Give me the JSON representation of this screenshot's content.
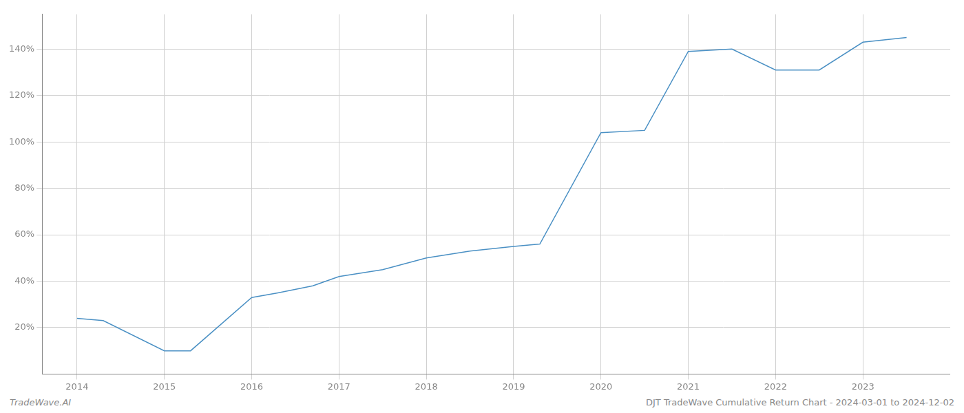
{
  "chart_data": {
    "type": "line",
    "title": "DJT TradeWave Cumulative Return Chart - 2024-03-01 to 2024-12-02",
    "annotations": [
      "TradeWave.AI"
    ],
    "x": [
      2014.0,
      2014.3,
      2015.0,
      2015.3,
      2016.0,
      2016.3,
      2016.7,
      2017.0,
      2017.5,
      2018.0,
      2018.5,
      2019.0,
      2019.3,
      2020.0,
      2020.5,
      2021.0,
      2021.5,
      2022.0,
      2022.5,
      2023.0,
      2023.5
    ],
    "values": [
      24,
      23,
      10,
      10,
      33,
      35,
      38,
      42,
      45,
      50,
      53,
      55,
      56,
      104,
      105,
      139,
      140,
      131,
      131,
      143,
      145
    ],
    "color": "#4a90c4",
    "xlim": [
      2013.6,
      2024.0
    ],
    "ylim": [
      0,
      155
    ],
    "xticks": [
      2014,
      2015,
      2016,
      2017,
      2018,
      2019,
      2020,
      2021,
      2022,
      2023
    ],
    "yticks": [
      {
        "value": 20,
        "label": "20%"
      },
      {
        "value": 40,
        "label": "40%"
      },
      {
        "value": 60,
        "label": "60%"
      },
      {
        "value": 80,
        "label": "80%"
      },
      {
        "value": 100,
        "label": "100%"
      },
      {
        "value": 120,
        "label": "120%"
      },
      {
        "value": 140,
        "label": "140%"
      }
    ],
    "grid": true
  }
}
